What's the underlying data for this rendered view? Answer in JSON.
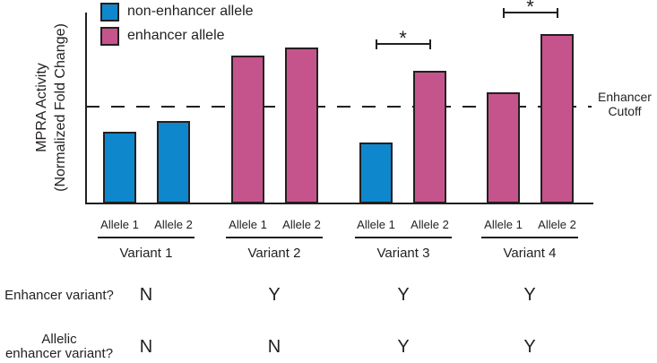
{
  "chart_data": {
    "type": "bar",
    "title": "",
    "ylabel_line1": "MPRA Activity",
    "ylabel_line2": "(Normalized Fold Change)",
    "yaxis_numeric_ticks": "none shown",
    "cutoff": {
      "label_line1": "Enhancer",
      "label_line2": "Cutoff",
      "value": 1.0
    },
    "significance_symbol": "*",
    "legend": [
      {
        "key": "non-enhancer",
        "label": "non-enhancer allele",
        "color": "#0f87cc"
      },
      {
        "key": "enhancer",
        "label": "enhancer allele",
        "color": "#c6548c"
      }
    ],
    "categories": [
      "Variant 1",
      "Variant 2",
      "Variant 3",
      "Variant 4"
    ],
    "groups": [
      {
        "variant": "Variant 1",
        "significant": false,
        "bars": [
          {
            "allele": "Allele 1",
            "type": "non-enhancer",
            "value": 0.74
          },
          {
            "allele": "Allele 2",
            "type": "non-enhancer",
            "value": 0.85
          }
        ]
      },
      {
        "variant": "Variant 2",
        "significant": false,
        "bars": [
          {
            "allele": "Allele 1",
            "type": "enhancer",
            "value": 1.53
          },
          {
            "allele": "Allele 2",
            "type": "enhancer",
            "value": 1.61
          }
        ]
      },
      {
        "variant": "Variant 3",
        "significant": true,
        "bars": [
          {
            "allele": "Allele 1",
            "type": "non-enhancer",
            "value": 0.63
          },
          {
            "allele": "Allele 2",
            "type": "enhancer",
            "value": 1.37
          }
        ]
      },
      {
        "variant": "Variant 4",
        "significant": true,
        "bars": [
          {
            "allele": "Allele 1",
            "type": "enhancer",
            "value": 1.15
          },
          {
            "allele": "Allele 2",
            "type": "enhancer",
            "value": 1.75
          }
        ]
      }
    ],
    "axis_note": "values are relative to enhancer cutoff = 1.0; no numeric tick labels shown"
  },
  "table": {
    "rows": [
      {
        "label_lines": [
          "Enhancer variant?"
        ],
        "values": [
          "N",
          "Y",
          "Y",
          "Y"
        ]
      },
      {
        "label_lines": [
          "Allelic",
          "enhancer variant?"
        ],
        "values": [
          "N",
          "N",
          "Y",
          "Y"
        ]
      }
    ]
  }
}
